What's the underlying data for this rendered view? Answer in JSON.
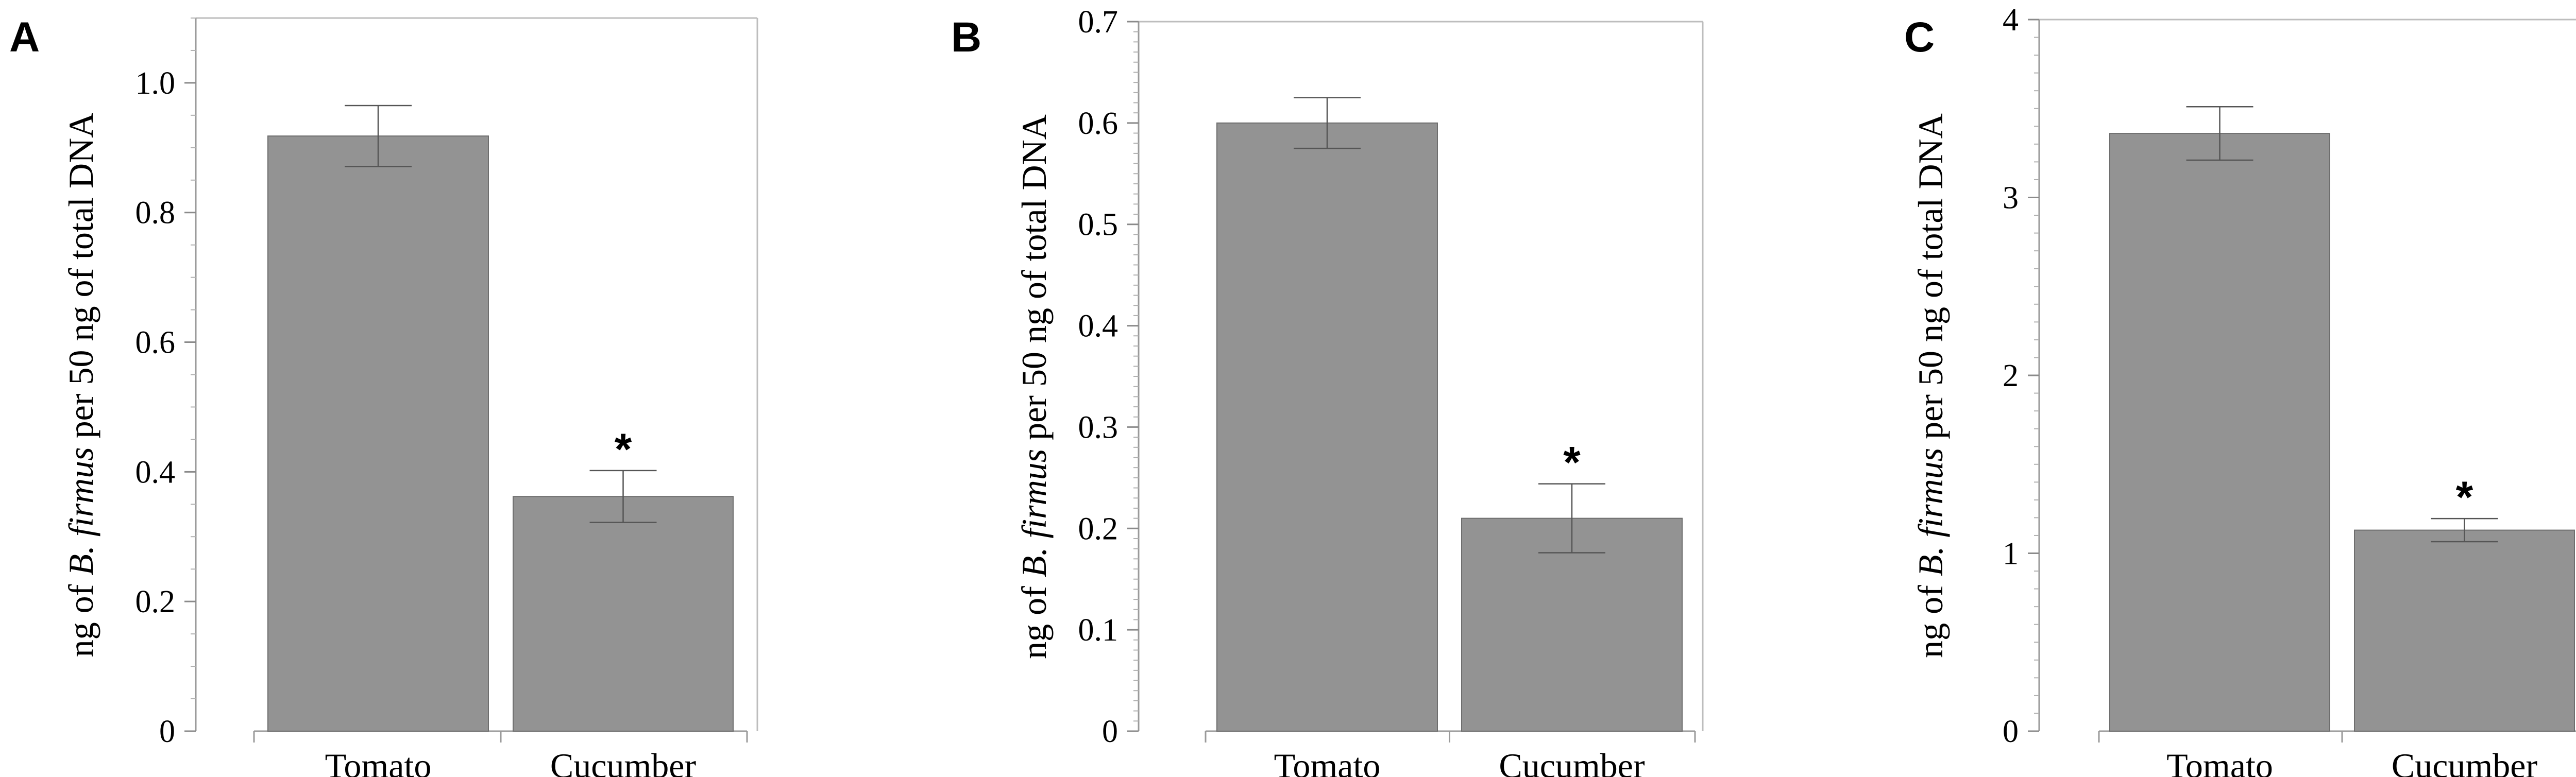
{
  "chart_data": [
    {
      "type": "bar",
      "panel": "A",
      "categories": [
        "Tomato",
        "Cucumber"
      ],
      "values": [
        0.918,
        0.362
      ],
      "error_bars": [
        0.047,
        0.04
      ],
      "significance": [
        "",
        "*"
      ],
      "ylim": [
        0,
        1.1
      ],
      "yticks": [
        0,
        0.2,
        0.4,
        0.6,
        0.8,
        1.0
      ],
      "ytick_labels": [
        "0",
        "0.2",
        "0.4",
        "0.6",
        "0.8",
        "1.0"
      ],
      "minor_step": 0.05,
      "ylabel": {
        "prefix": "ng of ",
        "italic": "B. firmus",
        "suffix": " per 50 ng of total DNA"
      },
      "xlabel": "",
      "bar_color": "#939393",
      "grid": false
    },
    {
      "type": "bar",
      "panel": "B",
      "categories": [
        "Tomato",
        "Cucumber"
      ],
      "values": [
        0.6,
        0.21
      ],
      "error_bars": [
        0.025,
        0.034
      ],
      "significance": [
        "",
        "*"
      ],
      "ylim": [
        0,
        0.7
      ],
      "yticks": [
        0,
        0.1,
        0.2,
        0.3,
        0.4,
        0.5,
        0.6,
        0.7
      ],
      "ytick_labels": [
        "0",
        "0.1",
        "0.2",
        "0.3",
        "0.4",
        "0.5",
        "0.6",
        "0.7"
      ],
      "minor_step": 0.01,
      "ylabel": {
        "prefix": "ng of ",
        "italic": "B. firmus",
        "suffix": " per 50 ng of total DNA"
      },
      "xlabel": "",
      "bar_color": "#939393",
      "grid": false
    },
    {
      "type": "bar",
      "panel": "C",
      "categories": [
        "Tomato",
        "Cucumber"
      ],
      "values": [
        3.36,
        1.13
      ],
      "error_bars": [
        0.15,
        0.065
      ],
      "significance": [
        "",
        "*"
      ],
      "ylim": [
        0,
        4
      ],
      "yticks": [
        0,
        1,
        2,
        3,
        4
      ],
      "ytick_labels": [
        "0",
        "1",
        "2",
        "3",
        "4"
      ],
      "minor_step": 0.1,
      "ylabel": {
        "prefix": "ng of ",
        "italic": "B. firmus",
        "suffix": " per 50 ng of total DNA"
      },
      "xlabel": "",
      "bar_color": "#939393",
      "grid": false
    }
  ]
}
